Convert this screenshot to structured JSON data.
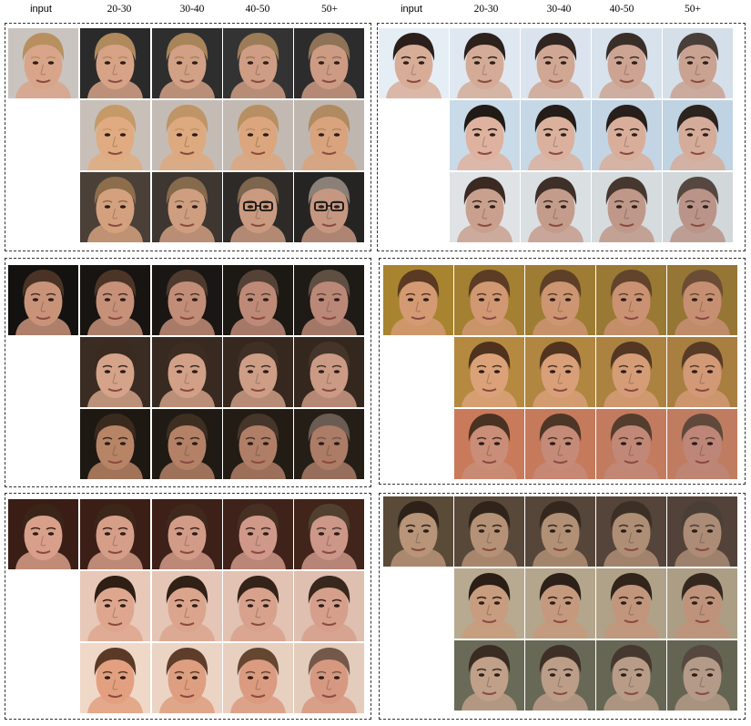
{
  "header": {
    "left": [
      "input",
      "20-30",
      "30-40",
      "40-50",
      "50+"
    ],
    "right": [
      "input",
      "20-30",
      "30-40",
      "40-50",
      "50+"
    ]
  },
  "panels": [
    {
      "id": "p1",
      "input": {
        "skin": "#d9a58a",
        "hair": "#b89060",
        "bg": "#c9c4c0"
      },
      "rows": [
        [
          {
            "skin": "#d7a387",
            "hair": "#b08a5c",
            "bg": "#2a2a2a"
          },
          {
            "skin": "#d2a085",
            "hair": "#a8845a",
            "bg": "#2e2e2e"
          },
          {
            "skin": "#cf9d84",
            "hair": "#9c7c58",
            "bg": "#333333"
          },
          {
            "skin": "#cd9b84",
            "hair": "#8e7356",
            "bg": "#2c2c2c"
          }
        ],
        [
          {
            "skin": "#e0ab80",
            "hair": "#c59968",
            "bg": "#c8c0b8"
          },
          {
            "skin": "#dda97f",
            "hair": "#bf9466",
            "bg": "#c4bcb4"
          },
          {
            "skin": "#dba67e",
            "hair": "#b88f63",
            "bg": "#c2bab2"
          },
          {
            "skin": "#d9a37d",
            "hair": "#b08a60",
            "bg": "#bfb7af"
          }
        ],
        [
          {
            "skin": "#d4a17f",
            "hair": "#8d6d4c",
            "bg": "#4a4038"
          },
          {
            "skin": "#cf9e80",
            "hair": "#866a4c",
            "bg": "#3e3630"
          },
          {
            "skin": "#ca9a80",
            "hair": "#7d654e",
            "bg": "#2e2a28",
            "glasses": true
          },
          {
            "skin": "#c69780",
            "hair": "#8a8078",
            "bg": "#262423",
            "glasses": true
          }
        ]
      ]
    },
    {
      "id": "p2",
      "input": {
        "skin": "#d7ad98",
        "hair": "#2a1f1a",
        "bg": "#e6eef5"
      },
      "rows": [
        [
          {
            "skin": "#d4ab96",
            "hair": "#2c211b",
            "bg": "#dfe8f0"
          },
          {
            "skin": "#d0a793",
            "hair": "#302520",
            "bg": "#dbe4ee"
          },
          {
            "skin": "#cda493",
            "hair": "#3a2e28",
            "bg": "#d8e2ec"
          },
          {
            "skin": "#caa292",
            "hair": "#4a3e38",
            "bg": "#d5dfe9"
          }
        ],
        [
          {
            "skin": "#deb29e",
            "hair": "#221a16",
            "bg": "#c9dbe8"
          },
          {
            "skin": "#dbb09c",
            "hair": "#241c18",
            "bg": "#c6d8e6"
          },
          {
            "skin": "#d8ae9b",
            "hair": "#281f1a",
            "bg": "#c3d5e4"
          },
          {
            "skin": "#d5ab99",
            "hair": "#2c231e",
            "bg": "#c0d3e2"
          }
        ],
        [
          {
            "skin": "#c9a08e",
            "hair": "#3a2a22",
            "bg": "#dfe3e6"
          },
          {
            "skin": "#c49c8c",
            "hair": "#3e2f28",
            "bg": "#dadfe2"
          },
          {
            "skin": "#bf988a",
            "hair": "#47382f",
            "bg": "#d6dbde"
          },
          {
            "skin": "#ba9488",
            "hair": "#564840",
            "bg": "#d2d7da"
          }
        ]
      ]
    },
    {
      "id": "p3",
      "input": {
        "skin": "#c9937a",
        "hair": "#4a3325",
        "bg": "#141210"
      },
      "rows": [
        [
          {
            "skin": "#c69079",
            "hair": "#4c3527",
            "bg": "#171411"
          },
          {
            "skin": "#c28d78",
            "hair": "#4e3a2d",
            "bg": "#1a1613"
          },
          {
            "skin": "#be8a77",
            "hair": "#554236",
            "bg": "#1c1814"
          },
          {
            "skin": "#bb8877",
            "hair": "#5f4e42",
            "bg": "#1e1a16"
          }
        ],
        [
          {
            "skin": "#d4a389",
            "hair": "#3a2a20",
            "bg": "#3a2c22"
          },
          {
            "skin": "#d1a087",
            "hair": "#3c2c22",
            "bg": "#382a20"
          },
          {
            "skin": "#ce9d86",
            "hair": "#402f25",
            "bg": "#36281f"
          },
          {
            "skin": "#cb9a85",
            "hair": "#453429",
            "bg": "#34271e"
          }
        ],
        [
          {
            "skin": "#b88466",
            "hair": "#3a2a1e",
            "bg": "#1d1812"
          },
          {
            "skin": "#b48166",
            "hair": "#3e2e22",
            "bg": "#201a14"
          },
          {
            "skin": "#b07e66",
            "hair": "#46362a",
            "bg": "#221c15"
          },
          {
            "skin": "#ac7c67",
            "hair": "#6a5c52",
            "bg": "#241e17"
          }
        ]
      ]
    },
    {
      "id": "p4",
      "input": {
        "skin": "#d49a74",
        "hair": "#5a3a22",
        "bg": "#a88430"
      },
      "rows": [
        [
          {
            "skin": "#d19873",
            "hair": "#5c3c24",
            "bg": "#a38032"
          },
          {
            "skin": "#cd9572",
            "hair": "#5e3f27",
            "bg": "#9e7c33"
          },
          {
            "skin": "#ca9272",
            "hair": "#62442c",
            "bg": "#9a7934"
          },
          {
            "skin": "#c78f72",
            "hair": "#6b4d36",
            "bg": "#967635"
          }
        ],
        [
          {
            "skin": "#dba27a",
            "hair": "#4e321e",
            "bg": "#b58a40"
          },
          {
            "skin": "#d89f79",
            "hair": "#503420",
            "bg": "#b08640"
          },
          {
            "skin": "#d59c78",
            "hair": "#533722",
            "bg": "#ac8240"
          },
          {
            "skin": "#d29977",
            "hair": "#573b26",
            "bg": "#a87f40"
          }
        ],
        [
          {
            "skin": "#c98d78",
            "hair": "#4a3222",
            "bg": "#c97a5a"
          },
          {
            "skin": "#c58a78",
            "hair": "#4e3626",
            "bg": "#c57a5c"
          },
          {
            "skin": "#c18878",
            "hair": "#553d2d",
            "bg": "#c27b5e"
          },
          {
            "skin": "#bd8678",
            "hair": "#60493a",
            "bg": "#bf7c60"
          }
        ]
      ]
    },
    {
      "id": "p5",
      "input": {
        "skin": "#d8a08a",
        "hair": "#3a2418",
        "bg": "#3a1e16"
      },
      "rows": [
        [
          {
            "skin": "#d59e89",
            "hair": "#3c2619",
            "bg": "#3b1f17"
          },
          {
            "skin": "#d29b88",
            "hair": "#40291c",
            "bg": "#3d2018"
          },
          {
            "skin": "#cf9888",
            "hair": "#463022",
            "bg": "#3f2219"
          },
          {
            "skin": "#cc9688",
            "hair": "#52402f",
            "bg": "#41241a"
          }
        ],
        [
          {
            "skin": "#dea68e",
            "hair": "#2e1e14",
            "bg": "#e8c8b8"
          },
          {
            "skin": "#dba48d",
            "hair": "#302016",
            "bg": "#e5c5b5"
          },
          {
            "skin": "#d8a18c",
            "hair": "#342318",
            "bg": "#e2c2b2"
          },
          {
            "skin": "#d59f8b",
            "hair": "#38271c",
            "bg": "#dfbfaf"
          }
        ],
        [
          {
            "skin": "#e2a080",
            "hair": "#5a3a26",
            "bg": "#f0d8c8"
          },
          {
            "skin": "#de9e80",
            "hair": "#5e3e2a",
            "bg": "#ecd4c4"
          },
          {
            "skin": "#da9b80",
            "hair": "#654631",
            "bg": "#e8d0c0"
          },
          {
            "skin": "#d69880",
            "hair": "#74584a",
            "bg": "#e4ccbc"
          }
        ]
      ]
    },
    {
      "id": "p6",
      "input": {
        "skin": "#b89478",
        "hair": "#2e2218",
        "bg": "#5a4a38"
      },
      "rows": [
        [
          {
            "skin": "#b59277",
            "hair": "#30241a",
            "bg": "#58483a"
          },
          {
            "skin": "#b29076",
            "hair": "#34281e",
            "bg": "#56463a"
          },
          {
            "skin": "#af8e76",
            "hair": "#3c3026",
            "bg": "#54443a"
          },
          {
            "skin": "#ac8c76",
            "hair": "#4a3f36",
            "bg": "#52423a"
          }
        ],
        [
          {
            "skin": "#c89c7e",
            "hair": "#2a1e16",
            "bg": "#b8aa90"
          },
          {
            "skin": "#c5997d",
            "hair": "#2c2018",
            "bg": "#b4a68c"
          },
          {
            "skin": "#c2967c",
            "hair": "#30241b",
            "bg": "#b0a288"
          },
          {
            "skin": "#bf937b",
            "hair": "#35291f",
            "bg": "#ac9e84"
          }
        ],
        [
          {
            "skin": "#c0a088",
            "hair": "#3a2c22",
            "bg": "#6a6a58"
          },
          {
            "skin": "#bc9e88",
            "hair": "#3e3026",
            "bg": "#686856"
          },
          {
            "skin": "#b89c88",
            "hair": "#46382e",
            "bg": "#666654"
          },
          {
            "skin": "#b49a88",
            "hair": "#56483e",
            "bg": "#646452"
          }
        ]
      ]
    }
  ]
}
